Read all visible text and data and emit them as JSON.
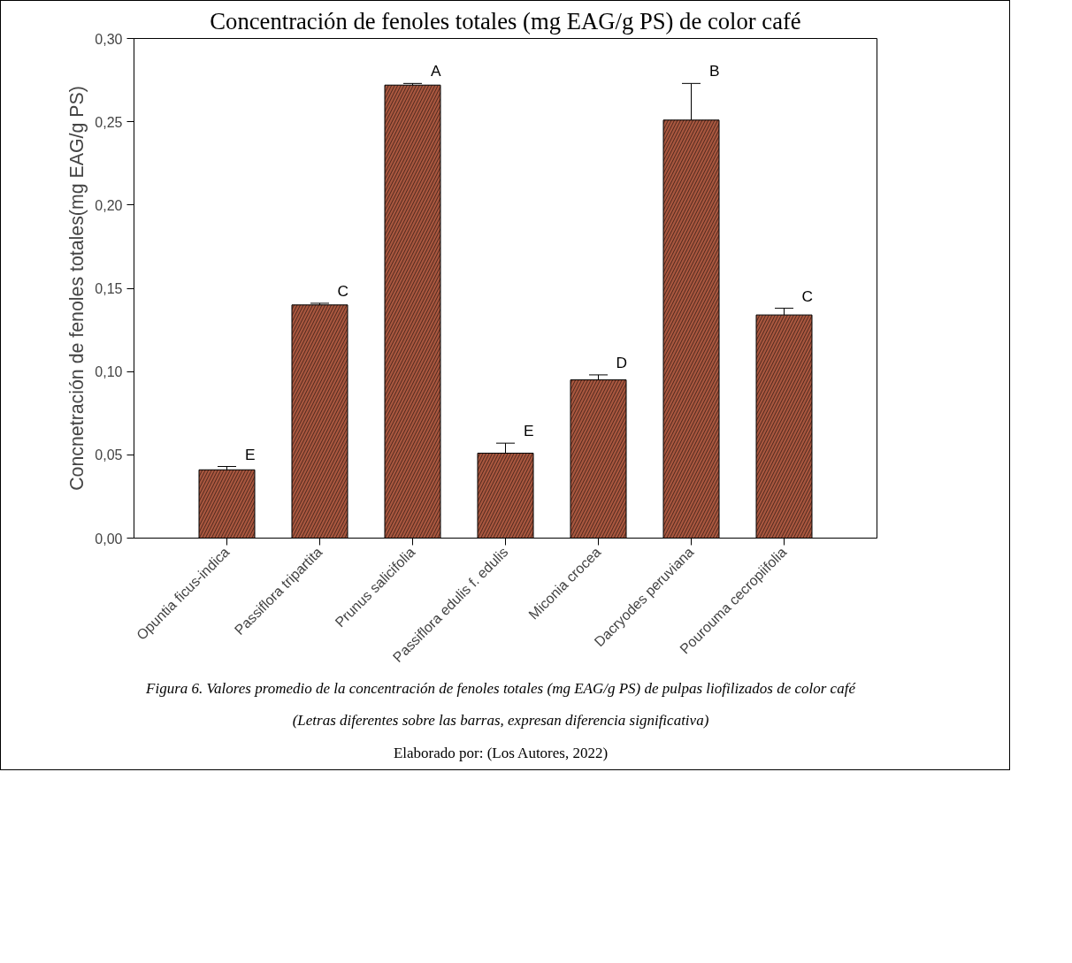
{
  "chart_data": {
    "type": "bar",
    "title": "Concentración de fenoles totales (mg EAG/g PS) de color café",
    "ylabel": "Concnetración de fenoles totales(mg EAG/g PS)",
    "categories": [
      "Opuntia ficus-indica",
      "Passiflora tripartita",
      "Prunus salicifolia",
      "Passiflora edulis f. edulis",
      "Miconia crocea",
      "Dacryodes peruviana",
      "Pourouma cecropiifolia"
    ],
    "values": [
      0.041,
      0.14,
      0.272,
      0.051,
      0.095,
      0.251,
      0.134
    ],
    "errors": [
      0.002,
      0.001,
      0.001,
      0.006,
      0.003,
      0.022,
      0.004
    ],
    "color": "#a9573f",
    "ylim": [
      0,
      0.3
    ],
    "yticks": [
      {
        "value": 0,
        "label": "0,00"
      },
      {
        "value": 0.05,
        "label": "0,05"
      },
      {
        "value": 0.1,
        "label": "0,10"
      },
      {
        "value": 0.15,
        "label": "0,15"
      },
      {
        "value": 0.2,
        "label": "0,20"
      },
      {
        "value": 0.25,
        "label": "0,25"
      },
      {
        "value": 0.3,
        "label": "0,30"
      }
    ],
    "annotations": [
      {
        "text": "E",
        "x": "Opuntia ficus-indica",
        "y": 0.041
      },
      {
        "text": "C",
        "x": "Passiflora tripartita",
        "y": 0.14
      },
      {
        "text": "A",
        "x": "Prunus salicifolia",
        "y": 0.272
      },
      {
        "text": "E",
        "x": "Passiflora edulis f. edulis",
        "y": 0.051
      },
      {
        "text": "D",
        "x": "Miconia crocea",
        "y": 0.095
      },
      {
        "text": "B",
        "x": "Dacryodes peruviana",
        "y": 0.251
      },
      {
        "text": "C",
        "x": "Pourouma cecropiifolia",
        "y": 0.134
      },
      "Figura 6. Valores promedio de la concentración de fenoles totales (mg EAG/g PS) de pulpas liofilizados de color café",
      "(Letras diferentes sobre las barras, expresan diferencia significativa)",
      "Elaborado por: (Los Autores, 2022)"
    ]
  }
}
